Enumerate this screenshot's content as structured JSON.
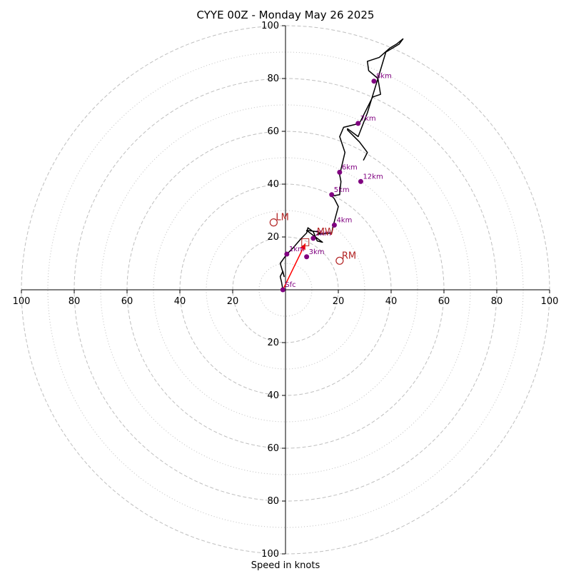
{
  "chart_data": {
    "type": "line",
    "title": "CYYE 00Z - Monday May 26 2025",
    "xlabel": "Speed in knots",
    "units": "knots",
    "range": [
      -100,
      100
    ],
    "ring_major": [
      20,
      40,
      60,
      80,
      100
    ],
    "ring_minor": [
      10,
      30,
      50,
      70,
      90
    ],
    "x_ticks": [
      {
        "value": -100,
        "label": "100"
      },
      {
        "value": -80,
        "label": "80"
      },
      {
        "value": -60,
        "label": "60"
      },
      {
        "value": -40,
        "label": "40"
      },
      {
        "value": -20,
        "label": "20"
      },
      {
        "value": 20,
        "label": "20"
      },
      {
        "value": 40,
        "label": "40"
      },
      {
        "value": 60,
        "label": "60"
      },
      {
        "value": 80,
        "label": "80"
      },
      {
        "value": 100,
        "label": "100"
      }
    ],
    "y_ticks": [
      {
        "value": 100,
        "label": "100"
      },
      {
        "value": 80,
        "label": "80"
      },
      {
        "value": 60,
        "label": "60"
      },
      {
        "value": 40,
        "label": "40"
      },
      {
        "value": 20,
        "label": "20"
      },
      {
        "value": -20,
        "label": "20"
      },
      {
        "value": -40,
        "label": "40"
      },
      {
        "value": -60,
        "label": "60"
      },
      {
        "value": -80,
        "label": "80"
      },
      {
        "value": -100,
        "label": "100"
      }
    ],
    "hodograph": {
      "u": [
        -1,
        -1.5,
        -2,
        -1,
        -0.5,
        -2,
        0.5,
        3,
        6,
        8,
        8.5,
        10.5,
        12,
        14,
        8,
        12,
        13,
        12,
        17.5,
        18,
        20,
        18.5,
        17.5,
        20.5,
        21,
        20.5,
        22.5,
        20.5,
        22,
        28,
        33,
        36,
        35,
        31.5,
        31,
        35.5,
        39.5,
        42,
        44.5,
        43,
        38,
        35,
        31,
        27.5,
        23.5,
        23.5,
        25,
        28,
        31,
        29.5
      ],
      "v": [
        0,
        3,
        5,
        7,
        5,
        10,
        13.5,
        16,
        19.5,
        21.5,
        23.5,
        22,
        18.5,
        18,
        22.5,
        22,
        21.5,
        21,
        21.5,
        24,
        31.5,
        34.5,
        35.5,
        36,
        41,
        43.5,
        52,
        58,
        61.5,
        63,
        73,
        74,
        80,
        83,
        86.5,
        88,
        91.5,
        93,
        95,
        93,
        90,
        80,
        67,
        58,
        61,
        60.5,
        59,
        56,
        52,
        49
      ]
    },
    "height_markers": [
      {
        "label": "Sfc",
        "u": -1,
        "v": 0
      },
      {
        "label": "1km",
        "u": 0.5,
        "v": 13.5
      },
      {
        "label": "2km",
        "u": 10.5,
        "v": 19.5
      },
      {
        "label": "3km",
        "u": 8,
        "v": 12.5
      },
      {
        "label": "4km",
        "u": 18.5,
        "v": 24.5
      },
      {
        "label": "5km",
        "u": 17.5,
        "v": 36
      },
      {
        "label": "6km",
        "u": 20.5,
        "v": 44.5
      },
      {
        "label": "7km",
        "u": 27.5,
        "v": 63
      },
      {
        "label": "8km",
        "u": 33.5,
        "v": 79
      },
      {
        "label": "12km",
        "u": 28.5,
        "v": 41
      }
    ],
    "storm_motion": [
      {
        "label": "LM",
        "u": -4.5,
        "v": 25.5
      },
      {
        "label": "RM",
        "u": 20.5,
        "v": 11
      },
      {
        "label": "MW",
        "u": 11,
        "v": 20
      }
    ],
    "mean_wind_vector": {
      "u_from": -1,
      "v_from": 0,
      "u_to": 7.5,
      "v_to": 17.5
    },
    "square_marker": {
      "u": 7.5,
      "v": 18
    },
    "colors": {
      "trace": "#000000",
      "marker": "#800080",
      "storm": "#b22222",
      "vector": "#ff0000",
      "ring": "#bfbfbf",
      "axis": "#000000"
    }
  }
}
